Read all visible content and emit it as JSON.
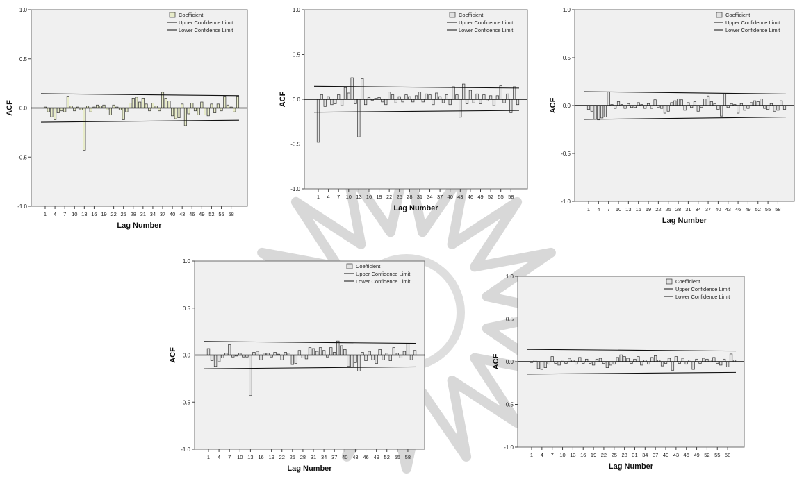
{
  "chart_data": [
    {
      "type": "bar",
      "ylabel": "ACF",
      "xlabel": "Lag Number",
      "ylim": [
        -1.0,
        1.0
      ],
      "yticks": [
        "1.0",
        "0.5",
        "0.0",
        "-0.5",
        "-1.0"
      ],
      "xticks": [
        "1",
        "4",
        "7",
        "10",
        "13",
        "16",
        "19",
        "22",
        "25",
        "28",
        "31",
        "34",
        "37",
        "40",
        "43",
        "46",
        "49",
        "52",
        "55",
        "58"
      ],
      "legend": [
        "Coefficient",
        "Upper Confidence Limit",
        "Lower Confidence Limit"
      ],
      "legend_position": "top-right",
      "bar_color": "#e8ecc9",
      "conf_limit": [
        0.145,
        0.125
      ],
      "lags": [
        1,
        2,
        3,
        4,
        5,
        6,
        7,
        8,
        9,
        10,
        11,
        12,
        13,
        14,
        15,
        16,
        17,
        18,
        19,
        20,
        21,
        22,
        23,
        24,
        25,
        26,
        27,
        28,
        29,
        30,
        31,
        32,
        33,
        34,
        35,
        36,
        37,
        38,
        39,
        40,
        41,
        42,
        43,
        44,
        45,
        46,
        47,
        48,
        49,
        50,
        51,
        52,
        53,
        54,
        55,
        56,
        57,
        58,
        59,
        60
      ],
      "values": [
        0.01,
        -0.04,
        -0.09,
        -0.12,
        -0.05,
        -0.03,
        -0.04,
        0.12,
        0.02,
        -0.03,
        0.01,
        -0.02,
        -0.43,
        0.02,
        -0.04,
        0.01,
        0.03,
        0.02,
        0.03,
        -0.02,
        -0.07,
        0.03,
        0.01,
        -0.02,
        -0.12,
        -0.04,
        0.05,
        0.1,
        0.11,
        0.06,
        0.1,
        0.04,
        -0.03,
        0.05,
        0.02,
        -0.03,
        0.16,
        0.1,
        0.07,
        -0.08,
        -0.11,
        -0.1,
        0.04,
        -0.18,
        -0.06,
        0.05,
        -0.03,
        -0.07,
        0.06,
        -0.07,
        -0.08,
        0.04,
        -0.05,
        0.04,
        -0.03,
        0.12,
        0.03,
        0.01,
        -0.04,
        0.12
      ]
    },
    {
      "type": "bar",
      "ylabel": "ACF",
      "xlabel": "Lag Number",
      "ylim": [
        -1.0,
        1.0
      ],
      "yticks": [
        "1.0",
        "0.5",
        "0.0",
        "-0.5",
        "-1.0"
      ],
      "xticks": [
        "1",
        "4",
        "7",
        "10",
        "13",
        "16",
        "19",
        "22",
        "25",
        "28",
        "31",
        "34",
        "37",
        "40",
        "43",
        "46",
        "49",
        "52",
        "55",
        "58"
      ],
      "legend": [
        "Coefficient",
        "Upper Confidence Limit",
        "Lower Confidence Limit"
      ],
      "legend_position": "top-right",
      "bar_color": "#e2e2e2",
      "conf_limit": [
        0.145,
        0.125
      ],
      "lags": [
        1,
        2,
        3,
        4,
        5,
        6,
        7,
        8,
        9,
        10,
        11,
        12,
        13,
        14,
        15,
        16,
        17,
        18,
        19,
        20,
        21,
        22,
        23,
        24,
        25,
        26,
        27,
        28,
        29,
        30,
        31,
        32,
        33,
        34,
        35,
        36,
        37,
        38,
        39,
        40,
        41,
        42,
        43,
        44,
        45,
        46,
        47,
        48,
        49,
        50,
        51,
        52,
        53,
        54,
        55,
        56,
        57,
        58,
        59,
        60
      ],
      "values": [
        -0.48,
        0.05,
        -0.08,
        0.03,
        -0.06,
        -0.05,
        0.05,
        -0.07,
        0.13,
        0.07,
        0.24,
        -0.05,
        -0.42,
        0.23,
        -0.06,
        0.02,
        -0.01,
        0.01,
        0.02,
        -0.03,
        -0.06,
        0.08,
        0.05,
        -0.04,
        0.03,
        -0.03,
        0.05,
        0.03,
        -0.03,
        0.04,
        0.08,
        -0.03,
        0.06,
        0.05,
        -0.06,
        0.07,
        0.03,
        -0.04,
        0.05,
        -0.06,
        0.14,
        0.05,
        -0.2,
        0.17,
        -0.05,
        0.1,
        -0.04,
        0.06,
        -0.05,
        0.05,
        -0.02,
        0.04,
        -0.07,
        0.04,
        0.15,
        -0.04,
        0.06,
        -0.15,
        0.14,
        -0.06
      ]
    },
    {
      "type": "bar",
      "ylabel": "ACF",
      "xlabel": "Lag Number",
      "ylim": [
        -1.0,
        1.0
      ],
      "yticks": [
        "1.0",
        "0.5",
        "0.0",
        "-0.5",
        "-1.0"
      ],
      "xticks": [
        "1",
        "4",
        "7",
        "10",
        "13",
        "16",
        "19",
        "22",
        "25",
        "28",
        "31",
        "34",
        "37",
        "40",
        "43",
        "46",
        "49",
        "52",
        "55",
        "58"
      ],
      "legend": [
        "Coefficient",
        "Upper Confidence Limit",
        "Lower Confidence Limit"
      ],
      "legend_position": "top-right",
      "bar_color": "#e2e2e2",
      "conf_limit": [
        0.145,
        0.12
      ],
      "lags": [
        1,
        2,
        3,
        4,
        5,
        6,
        7,
        8,
        9,
        10,
        11,
        12,
        13,
        14,
        15,
        16,
        17,
        18,
        19,
        20,
        21,
        22,
        23,
        24,
        25,
        26,
        27,
        28,
        29,
        30,
        31,
        32,
        33,
        34,
        35,
        36,
        37,
        38,
        39,
        40,
        41,
        42,
        43,
        44,
        45,
        46,
        47,
        48,
        49,
        50,
        51,
        52,
        53,
        54,
        55,
        56,
        57,
        58,
        59,
        60
      ],
      "values": [
        -0.04,
        -0.06,
        -0.14,
        -0.15,
        -0.13,
        -0.12,
        0.14,
        0.01,
        -0.03,
        0.04,
        0.01,
        -0.03,
        0.02,
        -0.02,
        -0.02,
        0.03,
        0.01,
        -0.03,
        0.02,
        -0.03,
        0.06,
        -0.02,
        -0.03,
        -0.08,
        -0.06,
        0.03,
        0.05,
        0.07,
        0.06,
        -0.05,
        0.03,
        -0.02,
        0.04,
        -0.06,
        -0.02,
        0.07,
        0.1,
        0.04,
        0.02,
        -0.04,
        -0.11,
        0.12,
        -0.02,
        0.02,
        0.01,
        -0.08,
        0.02,
        -0.05,
        -0.03,
        0.03,
        0.05,
        0.04,
        0.07,
        -0.03,
        -0.04,
        0.02,
        -0.06,
        -0.05,
        0.05,
        -0.04
      ]
    },
    {
      "type": "bar",
      "ylabel": "ACF",
      "xlabel": "Lag Number",
      "ylim": [
        -1.0,
        1.0
      ],
      "yticks": [
        "1.0",
        "0.5",
        "0.0",
        "-0.5",
        "-1.0"
      ],
      "xticks": [
        "1",
        "4",
        "7",
        "10",
        "13",
        "16",
        "19",
        "22",
        "25",
        "28",
        "31",
        "34",
        "37",
        "40",
        "43",
        "46",
        "49",
        "52",
        "55",
        "58"
      ],
      "legend": [
        "Coefficient",
        "Upper Confidence Limit",
        "Lower Confidence Limit"
      ],
      "legend_position": "top-right",
      "bar_color": "#e2e2e2",
      "conf_limit": [
        0.145,
        0.125
      ],
      "lags": [
        1,
        2,
        3,
        4,
        5,
        6,
        7,
        8,
        9,
        10,
        11,
        12,
        13,
        14,
        15,
        16,
        17,
        18,
        19,
        20,
        21,
        22,
        23,
        24,
        25,
        26,
        27,
        28,
        29,
        30,
        31,
        32,
        33,
        34,
        35,
        36,
        37,
        38,
        39,
        40,
        41,
        42,
        43,
        44,
        45,
        46,
        47,
        48,
        49,
        50,
        51,
        52,
        53,
        54,
        55,
        56,
        57,
        58,
        59,
        60
      ],
      "values": [
        0.07,
        -0.06,
        -0.12,
        -0.07,
        -0.03,
        0.02,
        0.11,
        -0.02,
        -0.01,
        0.02,
        -0.02,
        -0.02,
        -0.43,
        0.03,
        0.04,
        -0.05,
        0.02,
        0.02,
        -0.02,
        0.03,
        0.01,
        -0.05,
        0.03,
        0.02,
        -0.1,
        -0.09,
        0.05,
        -0.03,
        -0.04,
        0.08,
        0.07,
        0.04,
        0.08,
        0.05,
        -0.02,
        0.08,
        0.03,
        0.15,
        0.1,
        0.06,
        -0.12,
        -0.13,
        -0.08,
        -0.17,
        0.03,
        -0.06,
        0.04,
        -0.05,
        -0.09,
        0.06,
        -0.05,
        0.02,
        -0.06,
        0.08,
        0.02,
        -0.03,
        0.04,
        0.12,
        -0.05,
        0.05
      ]
    },
    {
      "type": "bar",
      "ylabel": "ACF",
      "xlabel": "Lag Number",
      "ylim": [
        -1.0,
        1.0
      ],
      "yticks": [
        "1.0",
        "0.5",
        "0.0",
        "-0.5",
        "-1.0"
      ],
      "xticks": [
        "1",
        "4",
        "7",
        "10",
        "13",
        "16",
        "19",
        "22",
        "25",
        "28",
        "31",
        "34",
        "37",
        "40",
        "43",
        "46",
        "49",
        "52",
        "55",
        "58"
      ],
      "legend": [
        "Coefficient",
        "Upper Confidence Limit",
        "Lower Confidence Limit"
      ],
      "legend_position": "top-right",
      "bar_color": "#e2e2e2",
      "conf_limit": [
        0.145,
        0.125
      ],
      "lags": [
        1,
        2,
        3,
        4,
        5,
        6,
        7,
        8,
        9,
        10,
        11,
        12,
        13,
        14,
        15,
        16,
        17,
        18,
        19,
        20,
        21,
        22,
        23,
        24,
        25,
        26,
        27,
        28,
        29,
        30,
        31,
        32,
        33,
        34,
        35,
        36,
        37,
        38,
        39,
        40,
        41,
        42,
        43,
        44,
        45,
        46,
        47,
        48,
        49,
        50,
        51,
        52,
        53,
        54,
        55,
        56,
        57,
        58,
        59,
        60
      ],
      "values": [
        -0.01,
        0.02,
        -0.08,
        -0.09,
        -0.07,
        -0.03,
        0.06,
        -0.02,
        -0.04,
        0.02,
        -0.02,
        0.04,
        0.02,
        -0.03,
        0.05,
        -0.02,
        0.03,
        -0.02,
        -0.04,
        0.03,
        0.04,
        -0.02,
        -0.07,
        -0.04,
        -0.03,
        0.05,
        0.08,
        0.06,
        0.04,
        -0.02,
        0.03,
        0.06,
        -0.04,
        0.02,
        -0.03,
        0.05,
        0.07,
        0.02,
        -0.05,
        -0.02,
        0.04,
        -0.1,
        0.06,
        -0.02,
        0.04,
        -0.03,
        0.02,
        -0.09,
        0.03,
        -0.02,
        0.04,
        0.03,
        0.02,
        0.05,
        -0.02,
        -0.04,
        0.03,
        -0.06,
        0.09,
        0.02
      ]
    }
  ]
}
